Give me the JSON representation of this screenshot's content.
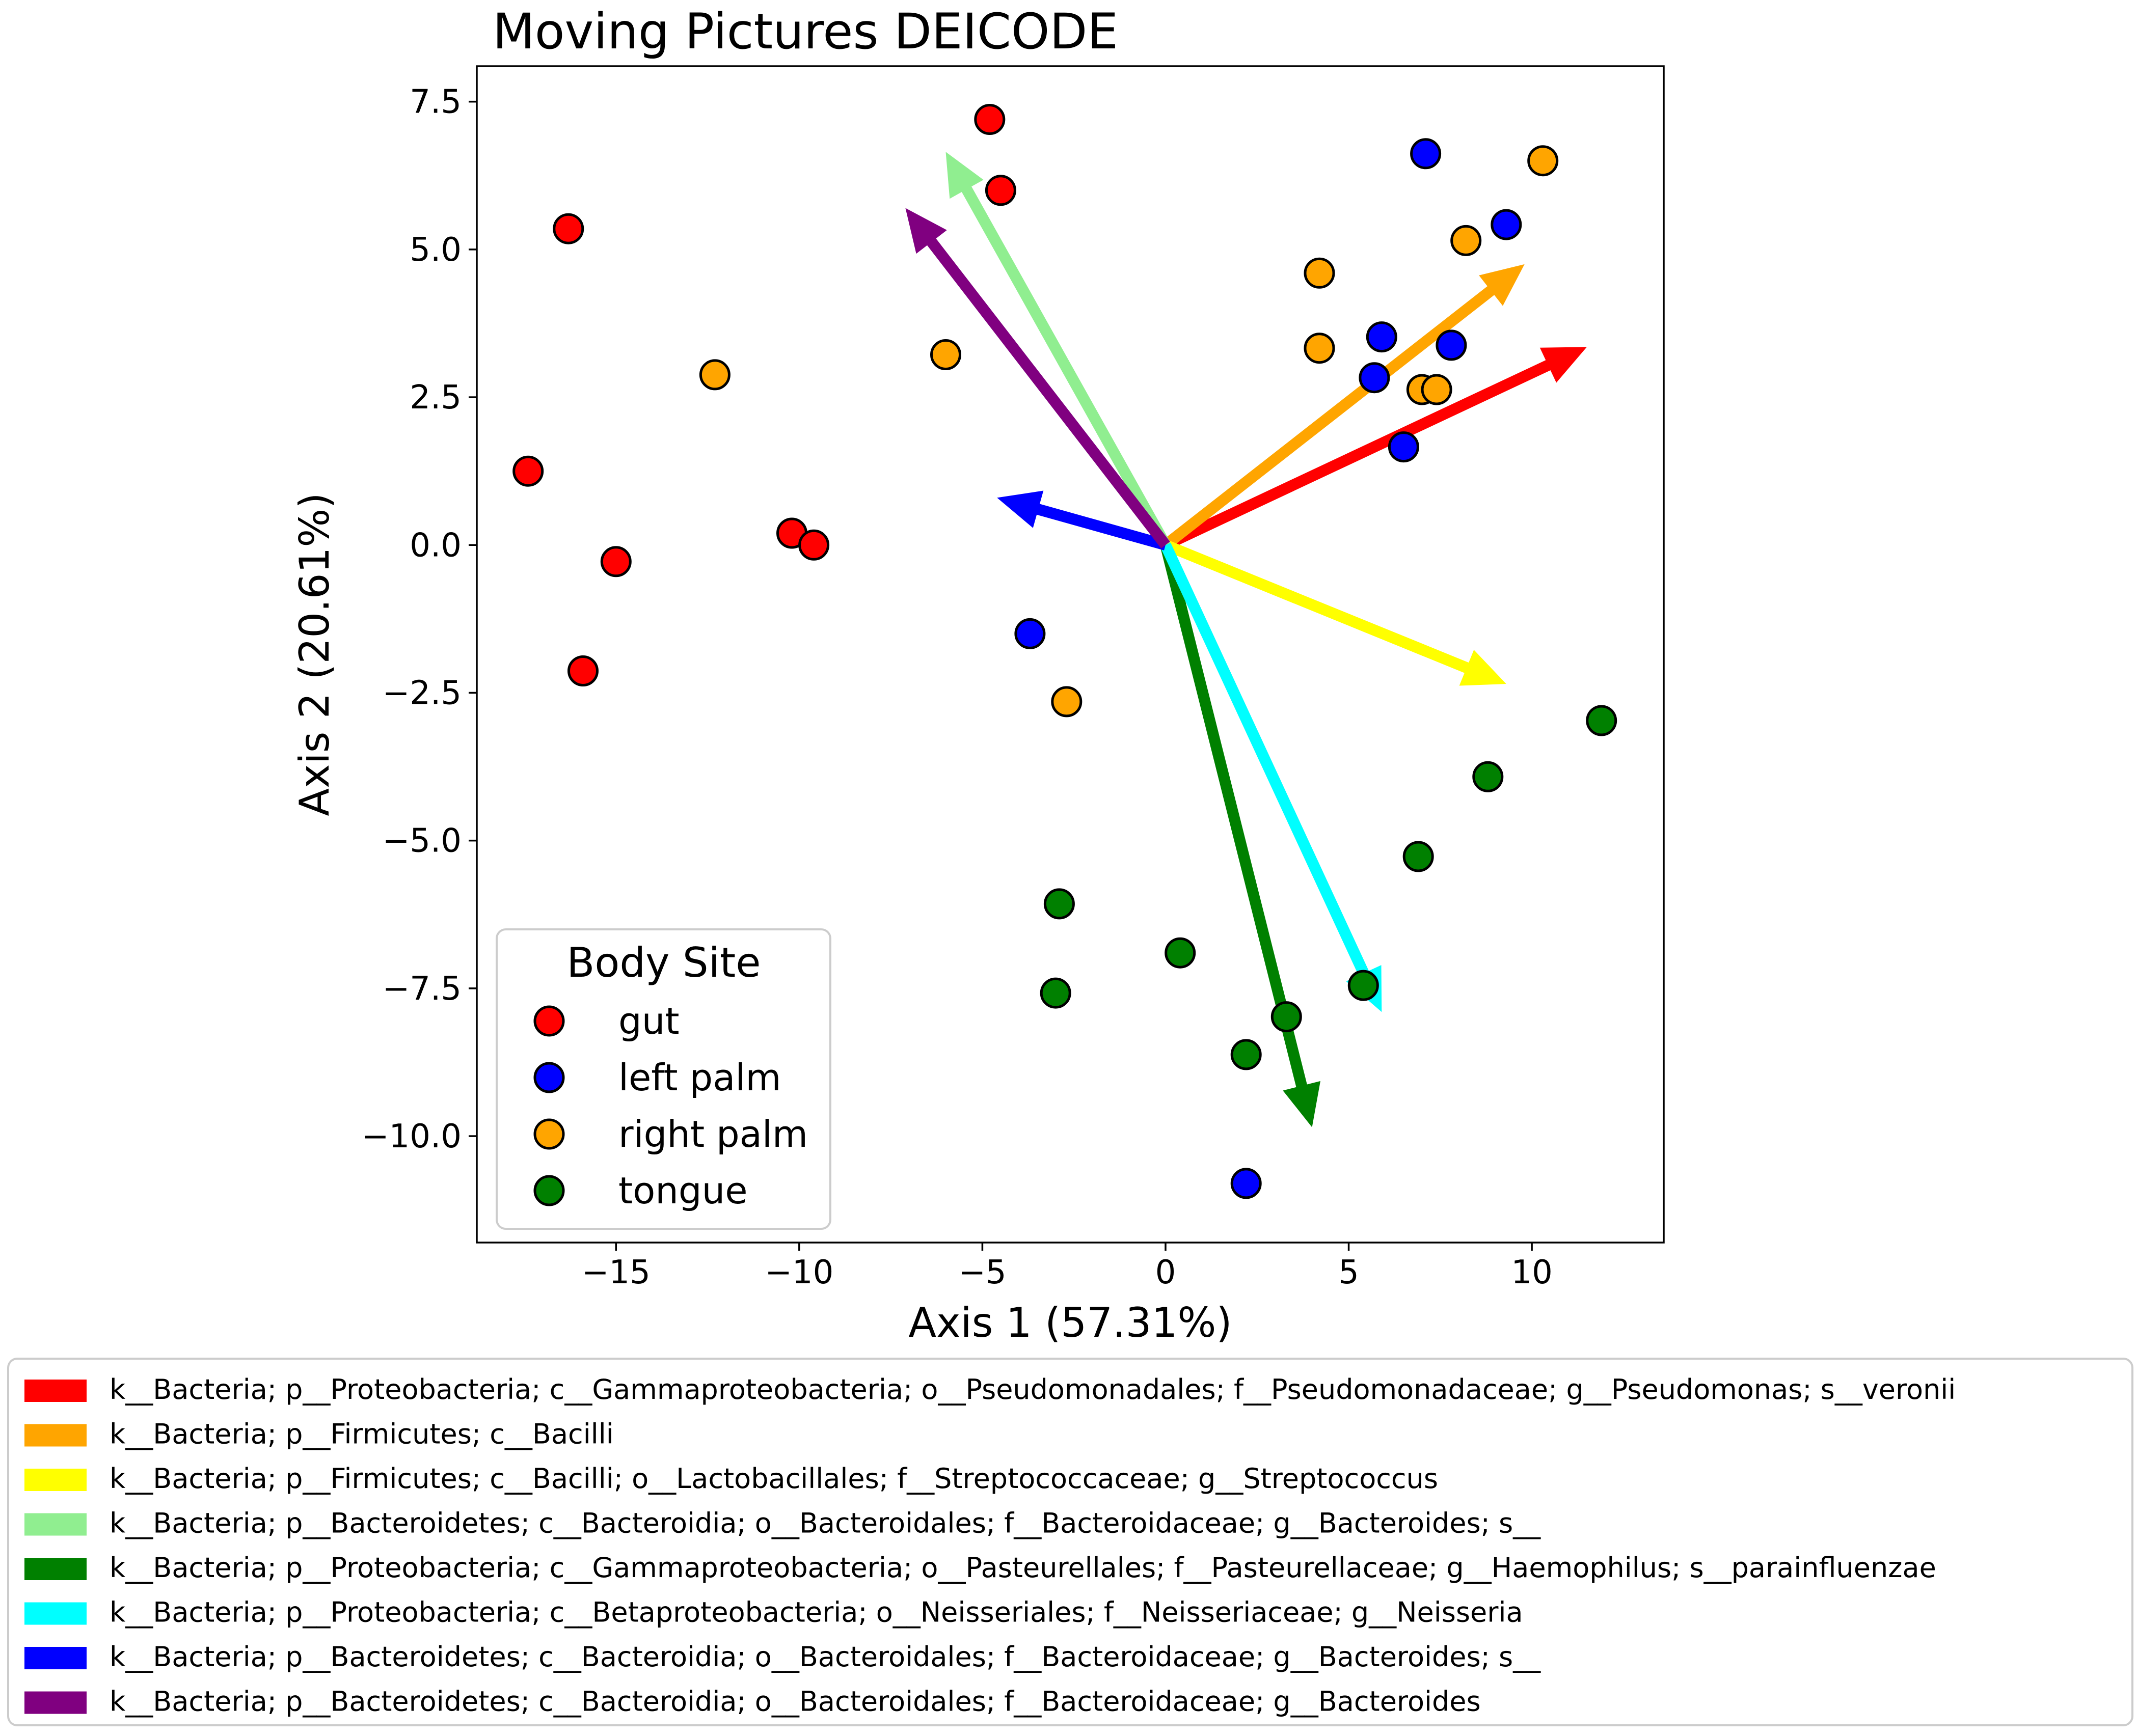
{
  "chart_data": {
    "type": "scatter",
    "title": "Moving Pictures DEICODE",
    "xlabel": "Axis 1 (57.31%)",
    "ylabel": "Axis 2 (20.61%)",
    "xlim": [
      -18.8,
      13.6
    ],
    "ylim": [
      -11.8,
      8.1
    ],
    "xticks": [
      -15,
      -10,
      -5,
      0,
      5,
      10
    ],
    "yticks": [
      7.5,
      5.0,
      2.5,
      0.0,
      -2.5,
      -5.0,
      -7.5,
      -10.0
    ],
    "xtick_labels": [
      "−15",
      "−10",
      "−5",
      "0",
      "5",
      "10"
    ],
    "ytick_labels": [
      "7.5",
      "5.0",
      "2.5",
      "0.0",
      "−2.5",
      "−5.0",
      "−7.5",
      "−10.0"
    ],
    "grid": false,
    "legend": {
      "title": "Body Site",
      "placement": "lower-left",
      "entries": [
        {
          "label": "gut",
          "color": "#ff0000"
        },
        {
          "label": "left palm",
          "color": "#0000ff"
        },
        {
          "label": "right palm",
          "color": "#ffa500"
        },
        {
          "label": "tongue",
          "color": "#008000"
        }
      ]
    },
    "series": [
      {
        "name": "gut",
        "color": "#ff0000",
        "points": [
          [
            -4.8,
            7.2
          ],
          [
            -4.5,
            6.0
          ],
          [
            -16.3,
            5.35
          ],
          [
            -17.4,
            1.25
          ],
          [
            -15.0,
            -0.28
          ],
          [
            -15.9,
            -2.13
          ],
          [
            -10.2,
            0.2
          ],
          [
            -9.6,
            0.0
          ]
        ]
      },
      {
        "name": "left palm",
        "color": "#0000ff",
        "points": [
          [
            7.1,
            6.62
          ],
          [
            9.3,
            5.42
          ],
          [
            5.9,
            3.52
          ],
          [
            7.8,
            3.38
          ],
          [
            5.7,
            2.83
          ],
          [
            6.5,
            1.66
          ],
          [
            -3.7,
            -1.5
          ],
          [
            2.2,
            -10.8
          ]
        ]
      },
      {
        "name": "right palm",
        "color": "#ffa500",
        "points": [
          [
            10.3,
            6.5
          ],
          [
            8.2,
            5.15
          ],
          [
            4.2,
            4.6
          ],
          [
            4.2,
            3.33
          ],
          [
            7.0,
            2.63
          ],
          [
            7.4,
            2.63
          ],
          [
            -6.0,
            3.22
          ],
          [
            -12.3,
            2.88
          ],
          [
            -2.7,
            -2.65
          ]
        ]
      },
      {
        "name": "tongue",
        "color": "#008000",
        "points": [
          [
            11.9,
            -2.97
          ],
          [
            8.8,
            -3.92
          ],
          [
            6.9,
            -5.27
          ],
          [
            5.4,
            -7.45
          ],
          [
            3.3,
            -7.98
          ],
          [
            2.2,
            -8.62
          ],
          [
            0.4,
            -6.9
          ],
          [
            -2.9,
            -6.07
          ],
          [
            -3.0,
            -7.58
          ]
        ]
      }
    ],
    "arrows": [
      {
        "color": "#ff0000",
        "tip": [
          11.5,
          3.35
        ],
        "label": "k__Bacteria; p__Proteobacteria; c__Gammaproteobacteria; o__Pseudomonadales; f__Pseudomonadaceae; g__Pseudomonas; s__veronii"
      },
      {
        "color": "#ffa500",
        "tip": [
          9.8,
          4.75
        ],
        "label": "k__Bacteria; p__Firmicutes; c__Bacilli"
      },
      {
        "color": "#ffff00",
        "tip": [
          9.3,
          -2.35
        ],
        "label": "k__Bacteria; p__Firmicutes; c__Bacilli; o__Lactobacillales; f__Streptococcaceae; g__Streptococcus"
      },
      {
        "color": "#90ee90",
        "tip": [
          -6.0,
          6.65
        ],
        "label": "k__Bacteria; p__Bacteroidetes; c__Bacteroidia; o__Bacteroidales; f__Bacteroidaceae; g__Bacteroides; s__"
      },
      {
        "color": "#008000",
        "tip": [
          4.0,
          -9.85
        ],
        "label": "k__Bacteria; p__Proteobacteria; c__Gammaproteobacteria; o__Pasteurellales; f__Pasteurellaceae; g__Haemophilus; s__parainfluenzae"
      },
      {
        "color": "#00ffff",
        "tip": [
          5.9,
          -7.9
        ],
        "label": "k__Bacteria; p__Proteobacteria; c__Betaproteobacteria; o__Neisseriales; f__Neisseriaceae; g__Neisseria"
      },
      {
        "color": "#0000ff",
        "tip": [
          -4.6,
          0.8
        ],
        "label": "k__Bacteria; p__Bacteroidetes; c__Bacteroidia; o__Bacteroidales; f__Bacteroidaceae; g__Bacteroides; s__"
      },
      {
        "color": "#800080",
        "tip": [
          -7.1,
          5.7
        ],
        "label": "k__Bacteria; p__Bacteroidetes; c__Bacteroidia; o__Bacteroidales; f__Bacteroidaceae; g__Bacteroides"
      }
    ]
  }
}
